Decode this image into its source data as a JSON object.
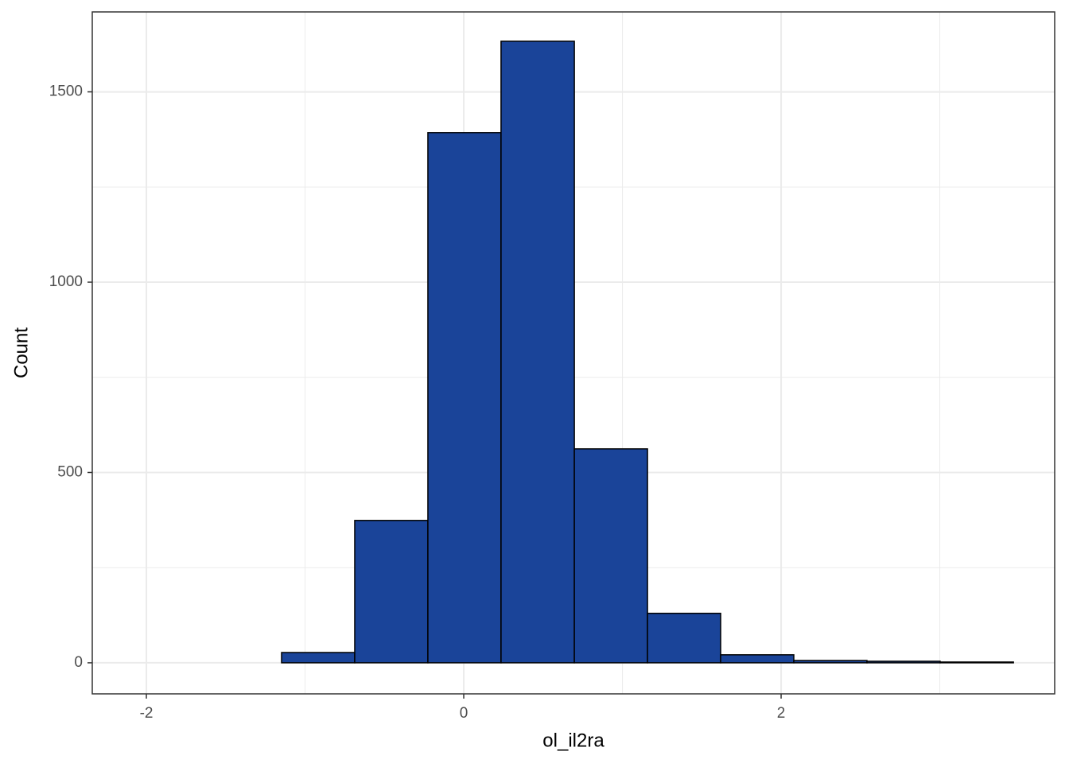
{
  "chart_data": {
    "type": "histogram",
    "x_label": "ol_il2ra",
    "y_label": "Count",
    "bins": [
      -2.07,
      -1.609,
      -1.148,
      -0.687,
      -0.226,
      0.235,
      0.697,
      1.158,
      1.619,
      2.08,
      2.541,
      3.002,
      3.464
    ],
    "counts": [
      0,
      0,
      27,
      374,
      1393,
      1633,
      562,
      130,
      21,
      6,
      4,
      2
    ],
    "color": "#1a4499",
    "edge_color": "#000000",
    "xlim": [
      -2.341,
      3.724
    ],
    "ylim": [
      -81.6,
      1710
    ],
    "xticks": [
      -2,
      0,
      2
    ],
    "yticks": [
      0,
      500,
      1000,
      1500
    ],
    "minor_xticks": [
      -1,
      1,
      3
    ],
    "minor_yticks": [
      250,
      750,
      1250
    ],
    "grid": true
  }
}
